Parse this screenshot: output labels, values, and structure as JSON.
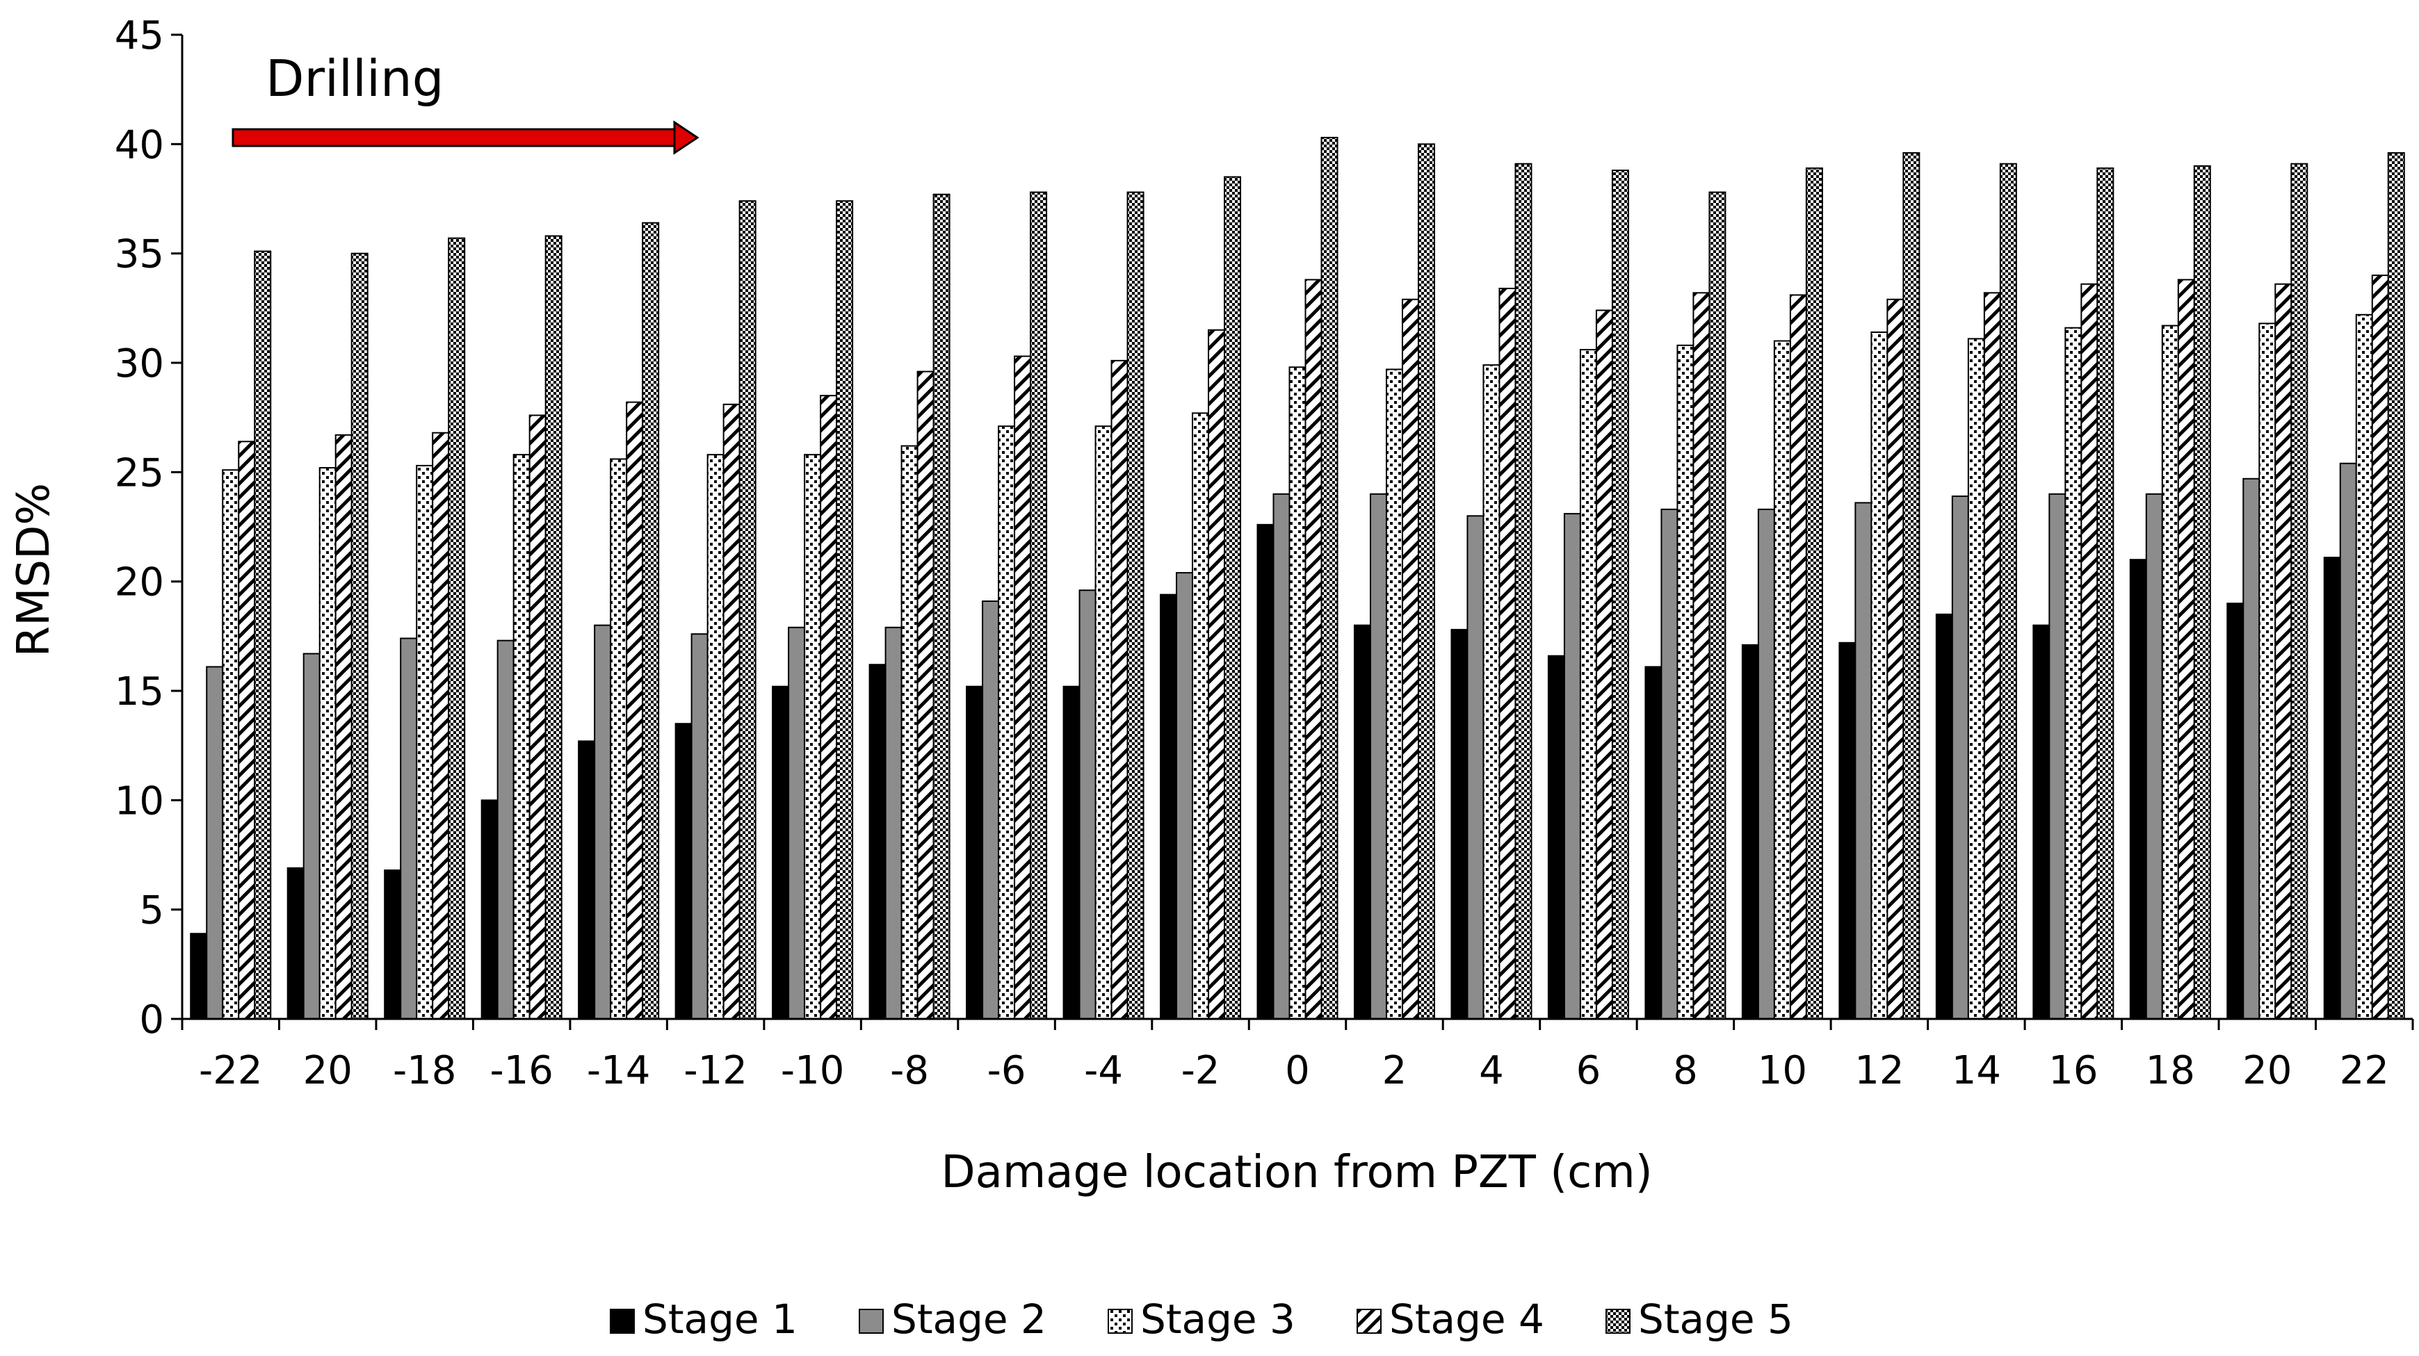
{
  "chart_data": {
    "type": "bar",
    "title": "",
    "xlabel": "Damage location from PZT (cm)",
    "ylabel": "RMSD%",
    "ylim": [
      0,
      45
    ],
    "yticks": [
      "0",
      "5",
      "10",
      "15",
      "20",
      "25",
      "30",
      "35",
      "40",
      "45"
    ],
    "categories": [
      "-22",
      "20",
      "-18",
      "-16",
      "-14",
      "-12",
      "-10",
      "-8",
      "-6",
      "-4",
      "-2",
      "0",
      "2",
      "4",
      "6",
      "8",
      "10",
      "12",
      "14",
      "16",
      "18",
      "20",
      "22"
    ],
    "grid": false,
    "legend_position": "bottom",
    "annotation": {
      "text": "Drilling",
      "arrow_color": "#e00000"
    },
    "series": [
      {
        "name": "Stage 1",
        "pattern": "solid-black",
        "values": [
          3.9,
          6.9,
          6.8,
          10.0,
          12.7,
          13.5,
          15.2,
          16.2,
          15.2,
          15.2,
          19.4,
          22.6,
          18.0,
          17.8,
          16.6,
          16.1,
          17.1,
          17.2,
          18.5,
          18.0,
          21.0,
          19.0,
          21.1
        ]
      },
      {
        "name": "Stage 2",
        "pattern": "solid-gray",
        "values": [
          16.1,
          16.7,
          17.4,
          17.3,
          18.0,
          17.6,
          17.9,
          17.9,
          19.1,
          19.6,
          20.4,
          24.0,
          24.0,
          23.0,
          23.1,
          23.3,
          23.3,
          23.6,
          23.9,
          24.0,
          24.0,
          24.7,
          25.4
        ]
      },
      {
        "name": "Stage 3",
        "pattern": "checker",
        "values": [
          25.1,
          25.2,
          25.3,
          25.8,
          25.6,
          25.8,
          25.8,
          26.2,
          27.1,
          27.1,
          27.7,
          29.8,
          29.7,
          29.9,
          30.6,
          30.8,
          31.0,
          31.4,
          31.1,
          31.6,
          31.7,
          31.8,
          32.2
        ]
      },
      {
        "name": "Stage 4",
        "pattern": "diagonal",
        "values": [
          26.4,
          26.7,
          26.8,
          27.6,
          28.2,
          28.1,
          28.5,
          29.6,
          30.3,
          30.1,
          31.5,
          33.8,
          32.9,
          33.4,
          32.4,
          33.2,
          33.1,
          32.9,
          33.2,
          33.6,
          33.8,
          33.6,
          34.0
        ]
      },
      {
        "name": "Stage 5",
        "pattern": "dense-check",
        "values": [
          35.1,
          35.0,
          35.7,
          35.8,
          36.4,
          37.4,
          37.4,
          37.7,
          37.8,
          37.8,
          38.5,
          40.3,
          40.0,
          39.1,
          38.8,
          37.8,
          38.9,
          39.6,
          39.1,
          38.9,
          39.0,
          39.1,
          39.6
        ]
      }
    ]
  }
}
